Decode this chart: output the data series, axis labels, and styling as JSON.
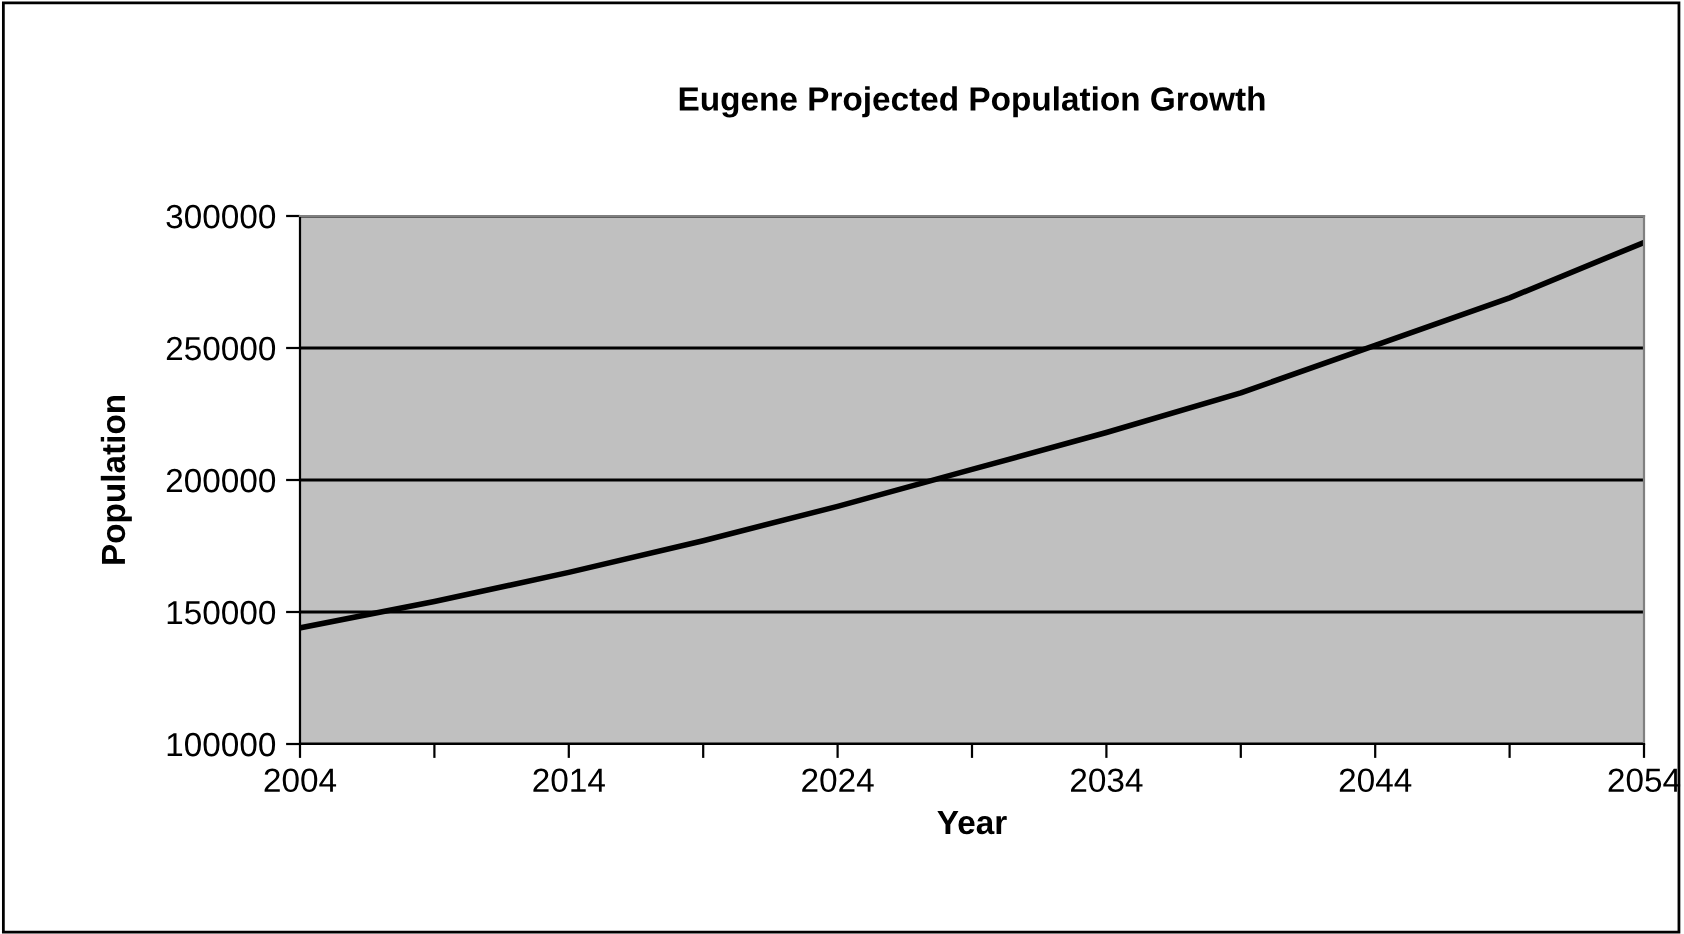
{
  "chart_data": {
    "type": "line",
    "title": "Eugene Projected Population Growth",
    "xlabel": "Year",
    "ylabel": "Population",
    "x": [
      2004,
      2009,
      2014,
      2019,
      2024,
      2029,
      2034,
      2039,
      2044,
      2049,
      2054
    ],
    "series": [
      {
        "color": "#000000",
        "values": [
          144000,
          154000,
          165000,
          177000,
          190000,
          204000,
          218000,
          233000,
          251000,
          269000,
          290000
        ]
      }
    ],
    "xlim": [
      2004,
      2054
    ],
    "ylim": [
      100000,
      300000
    ],
    "xticks": [
      2004,
      {
        "value": 2009,
        "label": null
      },
      2014,
      {
        "value": 2019,
        "label": null
      },
      2024,
      {
        "value": 2029,
        "label": null
      },
      2034,
      {
        "value": 2039,
        "label": null
      },
      2044,
      {
        "value": 2049,
        "label": null
      },
      2054
    ],
    "yticks": [
      100000,
      150000,
      200000,
      250000,
      300000
    ],
    "grid": "y",
    "legend": false,
    "marker": "none",
    "line_style": "solid"
  }
}
